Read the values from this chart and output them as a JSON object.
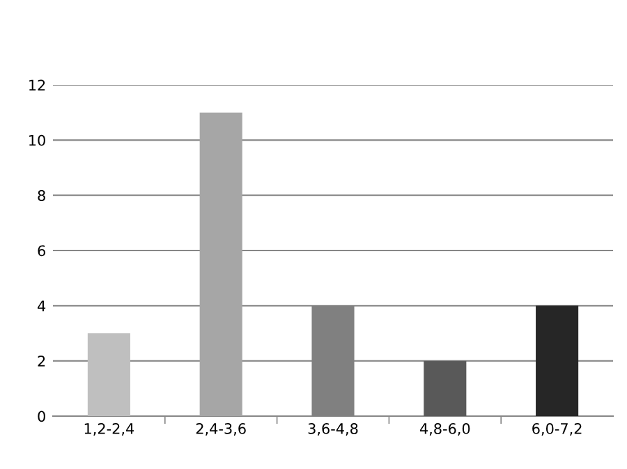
{
  "chart_data": {
    "type": "bar",
    "categories": [
      "1,2-2,4",
      "2,4-3,6",
      "3,6-4,8",
      "4,8-6,0",
      "6,0-7,2"
    ],
    "values": [
      3,
      11,
      4,
      2,
      4
    ],
    "colors": [
      "#bfbfbf",
      "#a6a6a6",
      "#808080",
      "#595959",
      "#262626"
    ],
    "ylim": [
      0,
      12
    ],
    "yticks": [
      0,
      2,
      4,
      6,
      8,
      10,
      12
    ],
    "grid": "y"
  }
}
